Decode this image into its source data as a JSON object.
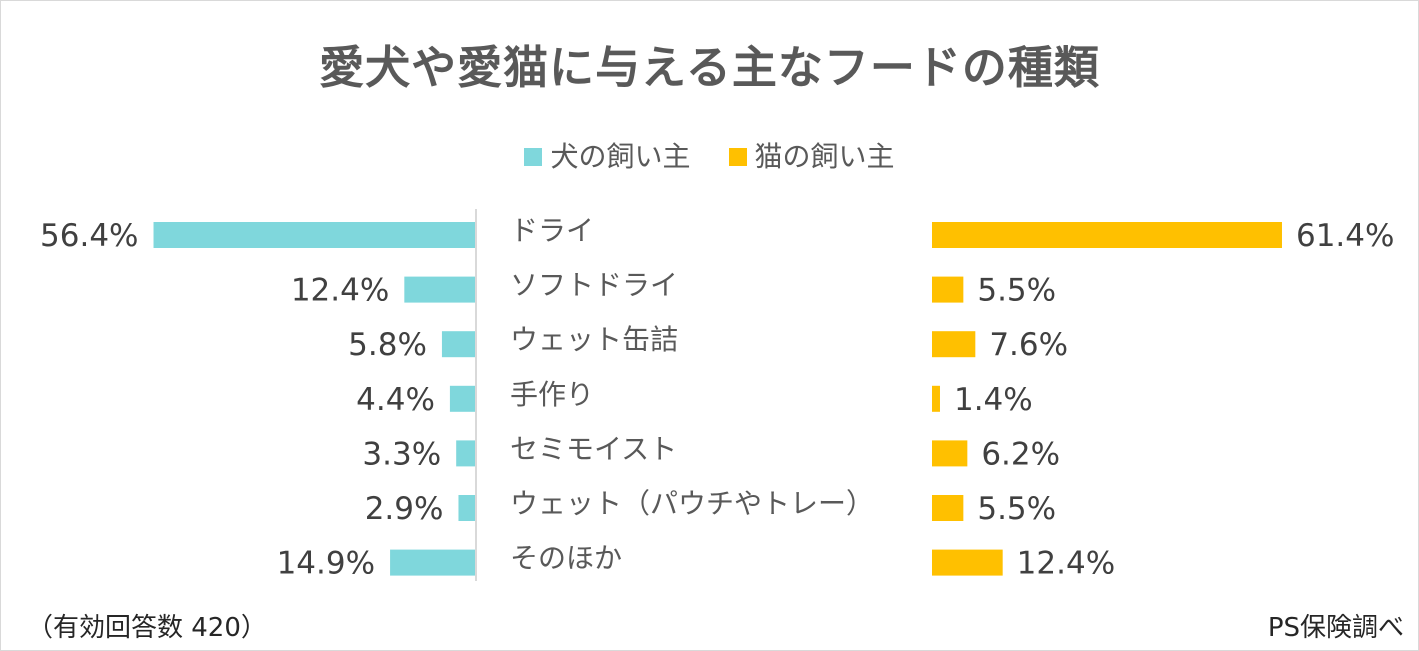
{
  "chart_data": {
    "type": "bar",
    "title": "愛犬や愛猫に与える主なフードの種類",
    "categories": [
      "ドライ",
      "ソフトドライ",
      "ウェット缶詰",
      "手作り",
      "セミモイスト",
      "ウェット（パウチやトレー）",
      "そのほか"
    ],
    "series": [
      {
        "name": "犬の飼い主",
        "color": "#7fd7dc",
        "values": [
          56.4,
          12.4,
          5.8,
          4.4,
          3.3,
          2.9,
          14.9
        ],
        "labels": [
          "56.4%",
          "12.4%",
          "5.8%",
          "4.4%",
          "3.3%",
          "2.9%",
          "14.9%"
        ]
      },
      {
        "name": "猫の飼い主",
        "color": "#ffc000",
        "values": [
          61.4,
          5.5,
          7.6,
          1.4,
          6.2,
          5.5,
          12.4
        ],
        "labels": [
          "61.4%",
          "5.5%",
          "7.6%",
          "1.4%",
          "6.2%",
          "5.5%",
          "12.4%"
        ]
      }
    ],
    "value_unit": "%",
    "legend_position": "top-center"
  },
  "footer": {
    "note": "（有効回答数 420）",
    "source": "PS保険調べ"
  }
}
